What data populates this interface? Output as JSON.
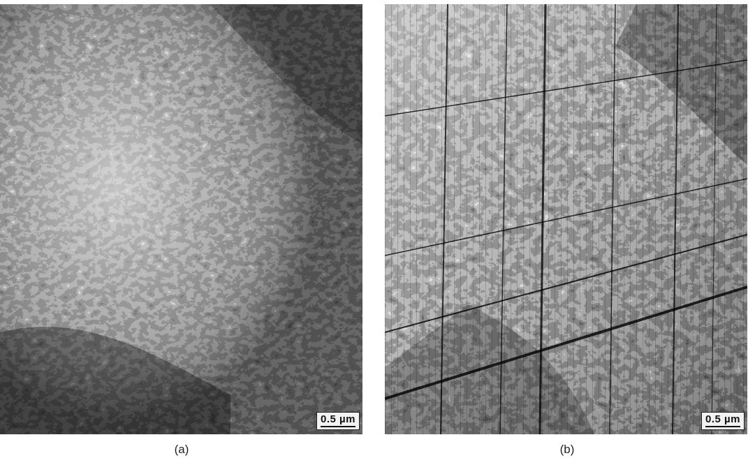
{
  "panels": [
    {
      "id": "a",
      "caption": "(a)",
      "scale_label": "0.5 µm"
    },
    {
      "id": "b",
      "caption": "(b)",
      "scale_label": "0.5 µm"
    }
  ],
  "colors": {
    "background": "#ffffff",
    "micrograph_dark": "#1a1a1a",
    "micrograph_light": "#e8e8e8"
  }
}
